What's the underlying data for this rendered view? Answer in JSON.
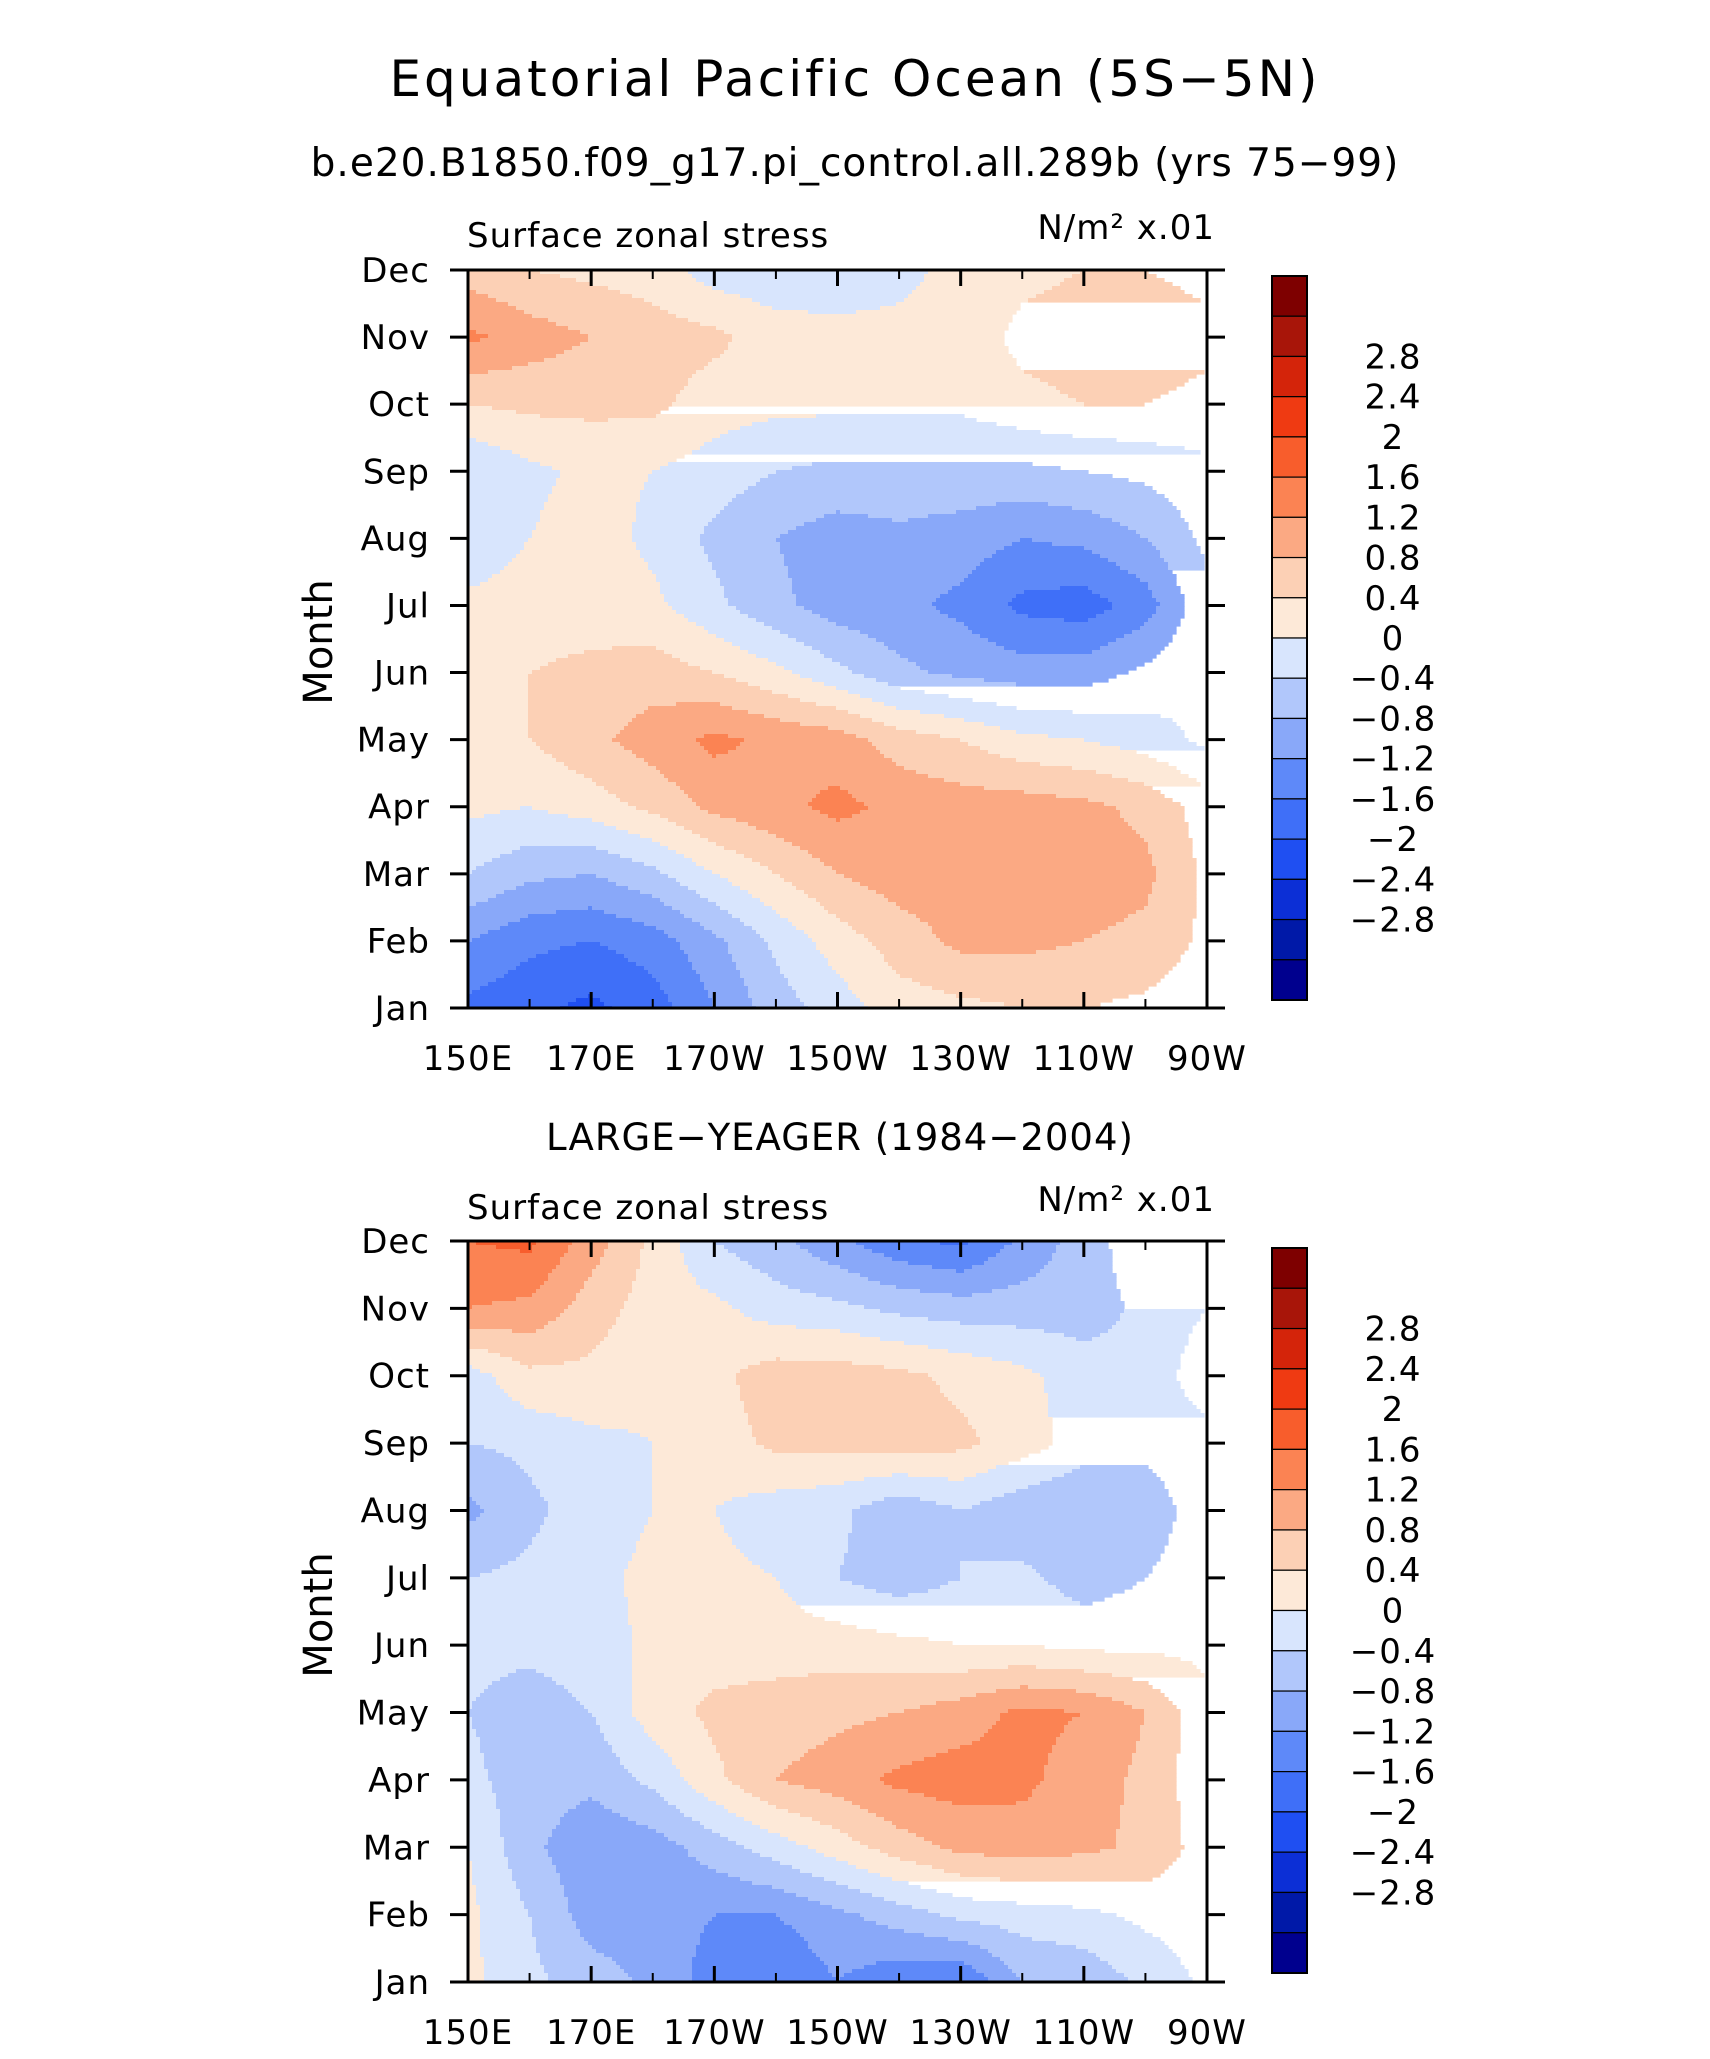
{
  "page": {
    "title": "Equatorial Pacific Ocean (5S−5N)",
    "subtitle": "b.e20.B1850.f09_g17.pi_control.all.289b (yrs 75−99)"
  },
  "palette": {
    "negative": [
      "#00008e",
      "#0019a8",
      "#0c2fd6",
      "#1f4ff2",
      "#3f6ff8",
      "#5e89f9",
      "#89a8f9",
      "#b1c7fb",
      "#d8e5fd"
    ],
    "positive": [
      "#fde9d8",
      "#fcd0b5",
      "#fba983",
      "#fb8353",
      "#f85d2c",
      "#ef3a12",
      "#d4240a",
      "#a81509",
      "#7e0000"
    ],
    "legend_order": [
      "#00008e",
      "#0019a8",
      "#0c2fd6",
      "#1f4ff2",
      "#3f6ff8",
      "#5e89f9",
      "#89a8f9",
      "#b1c7fb",
      "#d8e5fd",
      "#fde9d8",
      "#fcd0b5",
      "#fba983",
      "#fb8353",
      "#f85d2c",
      "#ef3a12",
      "#d4240a",
      "#a81509",
      "#7e0000"
    ]
  },
  "chart_data": [
    {
      "type": "heatmap",
      "title": "",
      "left_label": "Surface zonal stress",
      "units": "N/m² x.01",
      "xlabel": "",
      "ylabel": "Month",
      "x_tick_labels": [
        "150E",
        "170E",
        "170W",
        "150W",
        "130W",
        "110W",
        "90W"
      ],
      "x_lon": [
        150,
        170,
        190,
        210,
        230,
        250,
        270
      ],
      "xlim": [
        150,
        270
      ],
      "y_tick_labels": [
        "Jan",
        "Feb",
        "Mar",
        "Apr",
        "May",
        "Jun",
        "Jul",
        "Aug",
        "Sep",
        "Oct",
        "Nov",
        "Dec"
      ],
      "colorbar_labels": [
        "2.8",
        "2.4",
        "2",
        "1.6",
        "1.2",
        "0.8",
        "0.4",
        "0",
        "−0.4",
        "−0.8",
        "−1.2",
        "−1.6",
        "−2",
        "−2.4",
        "−2.8"
      ],
      "levels": [
        -3.2,
        -2.8,
        -2.4,
        -2.0,
        -1.6,
        -1.2,
        -0.8,
        -0.4,
        0,
        0.4,
        0.8,
        1.2,
        1.6,
        2.0,
        2.4,
        2.8
      ],
      "lon": [
        150,
        160,
        170,
        180,
        190,
        200,
        210,
        220,
        230,
        240,
        250,
        260,
        270
      ],
      "z": [
        [
          -1.7,
          -1.9,
          -2.1,
          -1.8,
          -1.2,
          -0.6,
          -0.2,
          0.2,
          0.3,
          0.4,
          0.4,
          0.3,
          0.1
        ],
        [
          -1.2,
          -1.5,
          -1.6,
          -1.4,
          -0.9,
          -0.3,
          0.2,
          0.6,
          0.9,
          0.9,
          0.8,
          0.7,
          0.3
        ],
        [
          -0.4,
          -0.7,
          -0.8,
          -0.5,
          0.0,
          0.4,
          0.8,
          1.0,
          1.0,
          1.0,
          1.0,
          0.9,
          0.3
        ],
        [
          0.1,
          0.0,
          0.2,
          0.5,
          0.9,
          1.1,
          1.3,
          1.1,
          1.0,
          1.0,
          0.9,
          0.7,
          0.2
        ],
        [
          0.3,
          0.4,
          0.7,
          1.0,
          1.3,
          1.1,
          1.0,
          0.6,
          0.4,
          0.1,
          0.0,
          -0.2,
          -0.5
        ],
        [
          0.2,
          0.4,
          0.5,
          0.6,
          0.4,
          0.1,
          -0.3,
          -0.7,
          -0.9,
          -1.0,
          -1.0,
          -0.7,
          -0.4
        ],
        [
          0.1,
          0.2,
          0.2,
          0.1,
          -0.3,
          -0.7,
          -1.0,
          -1.1,
          -1.3,
          -1.7,
          -1.8,
          -1.4,
          -0.5
        ],
        [
          -0.3,
          0.0,
          0.2,
          -0.1,
          -0.5,
          -0.8,
          -1.0,
          -0.9,
          -1.0,
          -1.2,
          -1.1,
          -0.8,
          -0.3
        ],
        [
          -0.4,
          -0.1,
          0.1,
          0.0,
          -0.2,
          -0.4,
          -0.5,
          -0.5,
          -0.5,
          -0.5,
          -0.4,
          -0.3,
          -0.1
        ],
        [
          0.4,
          0.5,
          0.5,
          0.5,
          0.2,
          0.1,
          0.1,
          0.1,
          0.1,
          0.3,
          0.4,
          0.4,
          0.3
        ],
        [
          1.3,
          1.0,
          0.8,
          0.6,
          0.5,
          0.2,
          0.1,
          0.1,
          0.2,
          0.5,
          0.6,
          0.6,
          0.5
        ],
        [
          0.6,
          0.4,
          0.3,
          0.2,
          -0.2,
          -0.3,
          -0.2,
          -0.1,
          0.1,
          0.3,
          0.4,
          0.4,
          0.3
        ]
      ]
    },
    {
      "type": "heatmap",
      "title": "LARGE−YEAGER (1984−2004)",
      "left_label": "Surface zonal stress",
      "units": "N/m² x.01",
      "xlabel": "",
      "ylabel": "Month",
      "x_tick_labels": [
        "150E",
        "170E",
        "170W",
        "150W",
        "130W",
        "110W",
        "90W"
      ],
      "x_lon": [
        150,
        170,
        190,
        210,
        230,
        250,
        270
      ],
      "xlim": [
        150,
        270
      ],
      "y_tick_labels": [
        "Jan",
        "Feb",
        "Mar",
        "Apr",
        "May",
        "Jun",
        "Jul",
        "Aug",
        "Sep",
        "Oct",
        "Nov",
        "Dec"
      ],
      "colorbar_labels": [
        "2.8",
        "2.4",
        "2",
        "1.6",
        "1.2",
        "0.8",
        "0.4",
        "0",
        "−0.4",
        "−0.8",
        "−1.2",
        "−1.6",
        "−2",
        "−2.4",
        "−2.8"
      ],
      "levels": [
        -3.2,
        -2.8,
        -2.4,
        -2.0,
        -1.6,
        -1.2,
        -0.8,
        -0.4,
        0,
        0.4,
        0.8,
        1.2,
        1.6,
        2.0,
        2.4,
        2.8
      ],
      "lon": [
        150,
        160,
        170,
        180,
        190,
        200,
        210,
        220,
        230,
        240,
        250,
        260,
        270
      ],
      "z": [
        [
          0.1,
          -0.3,
          -0.6,
          -0.9,
          -1.4,
          -1.6,
          -1.2,
          -1.5,
          -1.6,
          -0.8,
          -0.7,
          -0.3,
          0.1
        ],
        [
          0.1,
          -0.4,
          -1.0,
          -1.0,
          -1.2,
          -1.2,
          -0.9,
          -0.6,
          -0.3,
          -0.2,
          -0.1,
          0.1,
          0.2
        ],
        [
          0.0,
          -0.7,
          -1.1,
          -1.0,
          -0.6,
          -0.2,
          0.2,
          0.6,
          0.9,
          1.0,
          0.9,
          0.7,
          0.2
        ],
        [
          -0.3,
          -0.6,
          -0.7,
          -0.3,
          0.3,
          0.8,
          1.0,
          1.3,
          1.4,
          1.3,
          1.0,
          0.7,
          0.1
        ],
        [
          -0.4,
          -0.6,
          -0.4,
          0.2,
          0.5,
          0.6,
          0.7,
          0.8,
          1.0,
          1.3,
          1.2,
          0.8,
          0.1
        ],
        [
          -0.3,
          -0.3,
          -0.2,
          0.1,
          0.2,
          0.2,
          0.2,
          0.1,
          0.0,
          0.0,
          -0.1,
          -0.1,
          -0.1
        ],
        [
          -0.4,
          -0.3,
          -0.1,
          0.1,
          0.1,
          0.0,
          -0.4,
          -0.6,
          -0.4,
          -0.3,
          -0.6,
          -0.4,
          -0.2
        ],
        [
          -0.9,
          -0.5,
          -0.2,
          0.0,
          0.0,
          -0.2,
          -0.3,
          -0.7,
          -0.4,
          -0.7,
          -0.8,
          -0.6,
          -0.2
        ],
        [
          -0.4,
          -0.3,
          -0.1,
          0.0,
          0.2,
          0.5,
          0.5,
          0.6,
          0.5,
          0.2,
          -0.2,
          -0.3,
          -0.2
        ],
        [
          -0.2,
          0.3,
          0.3,
          0.1,
          0.3,
          0.6,
          0.6,
          0.5,
          0.3,
          0.1,
          -0.2,
          -0.3,
          0.3
        ],
        [
          1.2,
          1.1,
          0.6,
          0.2,
          0.1,
          -0.2,
          -0.3,
          -0.5,
          -0.6,
          -0.6,
          -0.6,
          -0.3,
          0.0
        ],
        [
          1.6,
          1.7,
          1.0,
          0.3,
          -0.4,
          -0.7,
          -1.1,
          -1.5,
          -1.7,
          -1.1,
          -0.6,
          -0.1,
          0.0
        ]
      ]
    }
  ]
}
